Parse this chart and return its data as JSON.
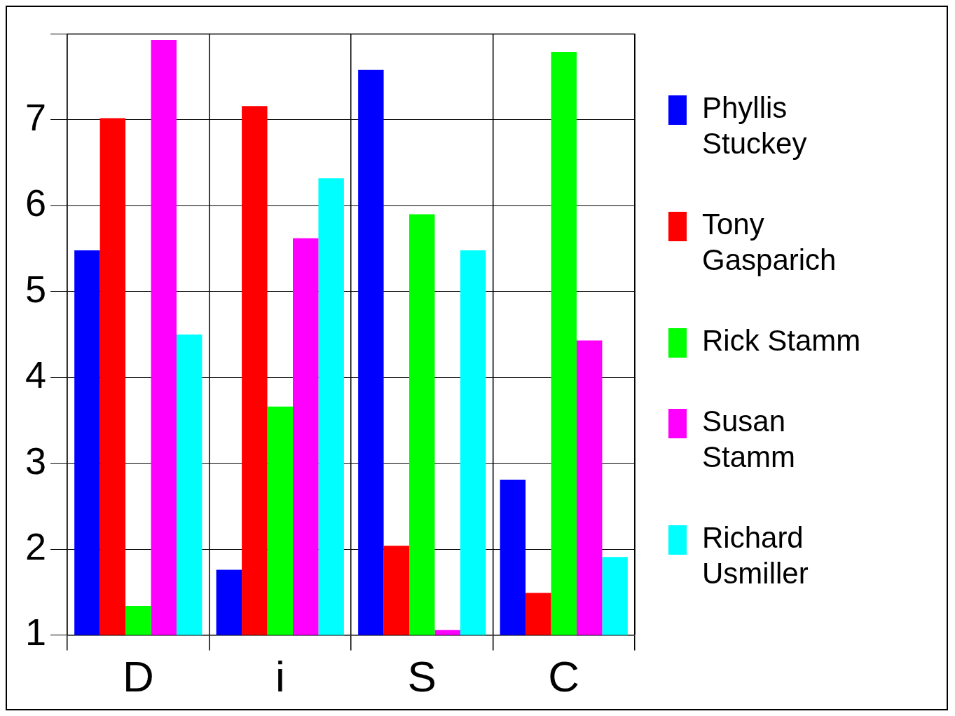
{
  "chart_data": {
    "type": "bar",
    "categories": [
      "D",
      "i",
      "S",
      "C"
    ],
    "series": [
      {
        "name": "Phyllis Stuckey",
        "color": "#0000ff",
        "values": [
          5.48,
          1.76,
          7.58,
          2.81
        ]
      },
      {
        "name": "Tony Gasparich",
        "color": "#ff0000",
        "values": [
          7.02,
          7.16,
          2.04,
          1.49
        ]
      },
      {
        "name": "Rick Stamm",
        "color": "#00ff00",
        "values": [
          1.34,
          3.66,
          5.9,
          7.79
        ]
      },
      {
        "name": "Susan Stamm",
        "color": "#ff00ff",
        "values": [
          7.93,
          5.62,
          1.06,
          4.43
        ]
      },
      {
        "name": "Richard Usmiller",
        "color": "#00ffff",
        "values": [
          4.5,
          6.32,
          5.48,
          1.91
        ]
      }
    ],
    "ylim": [
      1,
      8
    ],
    "yticks": [
      1,
      2,
      3,
      4,
      5,
      6,
      7,
      {
        "value": 8,
        "label": null
      }
    ],
    "grid": true,
    "legend": "right"
  }
}
